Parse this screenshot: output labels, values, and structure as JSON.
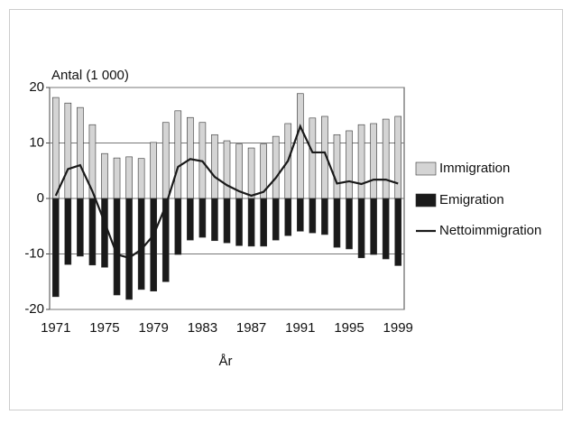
{
  "chart_data": {
    "type": "bar-line",
    "y_label": "Antal (1 000)",
    "x_label": "År",
    "categories": [
      "1971",
      null,
      null,
      null,
      "1975",
      null,
      null,
      null,
      "1979",
      null,
      null,
      null,
      "1983",
      null,
      null,
      null,
      "1987",
      null,
      null,
      null,
      "1991",
      null,
      null,
      null,
      "1995",
      null,
      null,
      null,
      "1999"
    ],
    "series": [
      {
        "name": "Immigration",
        "kind": "bar",
        "color": "#d4d4d4",
        "values": [
          18.2,
          17.2,
          16.4,
          13.3,
          8.1,
          7.3,
          7.5,
          7.2,
          10.1,
          13.7,
          15.8,
          14.6,
          13.7,
          11.5,
          10.4,
          9.8,
          9.1,
          9.8,
          11.2,
          13.5,
          18.9,
          14.5,
          14.8,
          11.5,
          12.2,
          13.3,
          13.5,
          14.3,
          14.8
        ]
      },
      {
        "name": "Emigration",
        "kind": "bar",
        "color": "#1a1a1a",
        "values": [
          -17.7,
          -11.9,
          -10.4,
          -12,
          -12.4,
          -17.4,
          -18.2,
          -16.4,
          -16.7,
          -15,
          -10.1,
          -7.5,
          -7,
          -7.6,
          -8,
          -8.5,
          -8.6,
          -8.6,
          -7.5,
          -6.7,
          -5.9,
          -6.2,
          -6.5,
          -8.8,
          -9.1,
          -10.7,
          -10.1,
          -10.9,
          -12.1
        ]
      },
      {
        "name": "Nettoimmigration",
        "kind": "line",
        "color": "#1a1a1a",
        "values": [
          0.5,
          5.3,
          6.0,
          1.3,
          -4.3,
          -10.1,
          -10.7,
          -9.2,
          -6.6,
          -1.3,
          5.7,
          7.1,
          6.7,
          3.9,
          2.4,
          1.3,
          0.5,
          1.2,
          3.7,
          6.8,
          13,
          8.3,
          8.3,
          2.7,
          3.1,
          2.6,
          3.4,
          3.4,
          2.7
        ]
      }
    ],
    "ylim": [
      -20,
      20
    ],
    "yticks": [
      -20,
      -10,
      0,
      10,
      20
    ],
    "grid": true
  }
}
